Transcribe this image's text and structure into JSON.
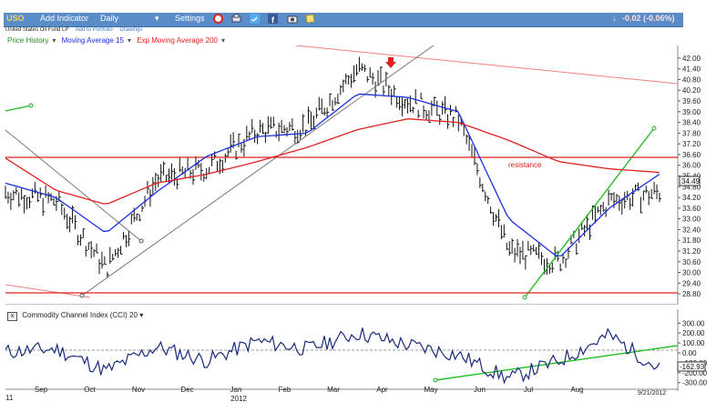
{
  "toolbar": {
    "ticker": "USO",
    "add_indicator": "Add Indicator",
    "period": "Daily",
    "period_caret": "▾",
    "settings": "Settings",
    "change": "-0.02 (-0.06%)",
    "change_arrow": "↓"
  },
  "subline": {
    "name": "United States Oil Fund LP",
    "add_portfolio": "Add to Portfolio",
    "drawings": "Drawings"
  },
  "legend": {
    "price_history": "Price History",
    "ma15": "Moving Average 15",
    "ema200": "Exp Moving Average 200",
    "caret": "▾"
  },
  "price_axis": [
    "42.00",
    "41.40",
    "40.80",
    "40.20",
    "39.60",
    "39.00",
    "38.40",
    "37.80",
    "37.20",
    "36.60",
    "36.00",
    "35.40",
    "34.80",
    "34.20",
    "33.60",
    "33.00",
    "32.40",
    "31.80",
    "31.20",
    "30.60",
    "30.00",
    "29.40",
    "28.80"
  ],
  "last_price": "34.49",
  "annotation_resistance": "resistance",
  "cci": {
    "title": "Commodity Channel Index (CCI) 20",
    "caret": "▾",
    "toggle": "x",
    "axis": [
      "300.00",
      "200.00",
      "100.00",
      "0.00",
      "-100.00",
      "-200.00",
      "-300.00"
    ],
    "last": "-162.93"
  },
  "time_axis": {
    "year_prev": "11",
    "months": [
      "Sep",
      "Oct",
      "Nov",
      "Dec",
      "Jan",
      "Feb",
      "Mar",
      "Apr",
      "May",
      "Jun",
      "Jul",
      "Aug"
    ],
    "year": "2012",
    "date": "9/21/2012"
  },
  "colors": {
    "toolbar": "#5a8cc8",
    "price": "#111111",
    "ma15": "#1a2fe0",
    "ema200": "#e02020",
    "trend_green": "#22bb22",
    "resistance": "#e02020",
    "gray_trend": "#777777",
    "pink_channel": "#f08080"
  },
  "chart_data": {
    "type": "line",
    "x": [
      "Aug-11",
      "Sep",
      "Oct",
      "Nov",
      "Dec",
      "Jan-12",
      "Feb",
      "Mar",
      "Apr",
      "May",
      "Jun",
      "Jul",
      "Aug",
      "Sep-21"
    ],
    "series": [
      {
        "name": "Price History",
        "values": [
          34.5,
          34.0,
          30.2,
          35.2,
          35.8,
          37.9,
          38.2,
          41.4,
          39.6,
          38.6,
          31.2,
          30.6,
          34.0,
          34.49
        ]
      },
      {
        "name": "Moving Average 15",
        "values": [
          35.0,
          34.2,
          32.2,
          34.5,
          36.5,
          37.6,
          37.8,
          40.0,
          39.8,
          39.0,
          33.0,
          30.8,
          33.6,
          35.5
        ]
      },
      {
        "name": "Exp Moving Average 200",
        "values": [
          36.4,
          34.6,
          33.8,
          35.0,
          35.5,
          36.2,
          37.0,
          38.0,
          38.6,
          38.4,
          37.4,
          36.2,
          35.8,
          35.6
        ]
      }
    ],
    "cci": {
      "name": "Commodity Channel Index (CCI) 20",
      "values": [
        10,
        40,
        -180,
        60,
        -80,
        120,
        40,
        200,
        80,
        -20,
        -260,
        -80,
        180,
        -162.93
      ]
    },
    "annotations": [
      "resistance"
    ],
    "ylim": [
      28.5,
      42.3
    ],
    "cci_ylim": [
      -330,
      330
    ],
    "grid": false
  }
}
